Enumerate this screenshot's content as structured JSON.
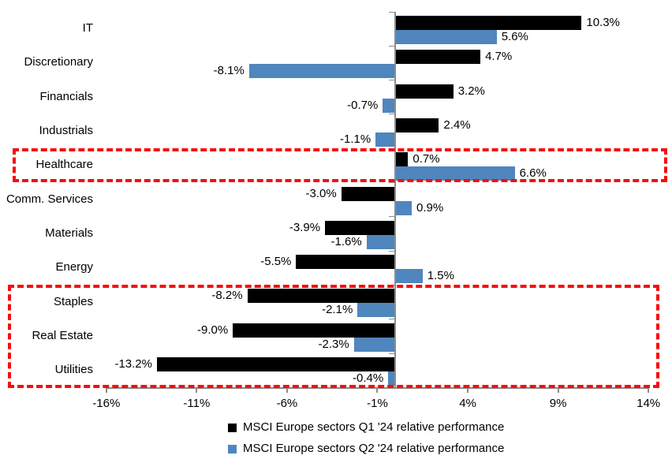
{
  "chart_data": {
    "type": "bar",
    "orientation": "horizontal",
    "title": "",
    "categories": [
      "IT",
      "Discretionary",
      "Financials",
      "Industrials",
      "Healthcare",
      "Comm. Services",
      "Materials",
      "Energy",
      "Staples",
      "Real Estate",
      "Utilities"
    ],
    "series": [
      {
        "name": "MSCI Europe sectors Q1 '24 relative performance",
        "color": "#000000",
        "values": [
          10.3,
          4.7,
          3.2,
          2.4,
          0.7,
          -3.0,
          -3.9,
          -5.5,
          -8.2,
          -9.0,
          -13.2
        ]
      },
      {
        "name": "MSCI Europe sectors Q2 '24 relative performance",
        "color": "#4f86bd",
        "values": [
          5.6,
          -8.1,
          -0.7,
          -1.1,
          6.6,
          0.9,
          -1.6,
          1.5,
          -2.1,
          -2.3,
          -0.4
        ]
      }
    ],
    "xlim": [
      -16,
      14
    ],
    "x_tick_values": [
      -16,
      -11,
      -6,
      -1,
      4,
      9,
      14
    ],
    "x_tick_labels": [
      "-16%",
      "-11%",
      "-6%",
      "-1%",
      "4%",
      "9%",
      "14%"
    ],
    "value_suffix": "%",
    "grid": false,
    "legend_position": "bottom",
    "highlights": [
      {
        "name": "healthcare-highlight",
        "first_row": 4,
        "last_row": 4,
        "color": "#f60d0d"
      },
      {
        "name": "defensives-highlight",
        "first_row": 8,
        "last_row": 10,
        "color": "#f60d0d"
      }
    ]
  },
  "legend": {
    "q1_label": "MSCI Europe sectors Q1 '24 relative performance",
    "q2_label": "MSCI Europe sectors Q2 '24 relative performance"
  }
}
